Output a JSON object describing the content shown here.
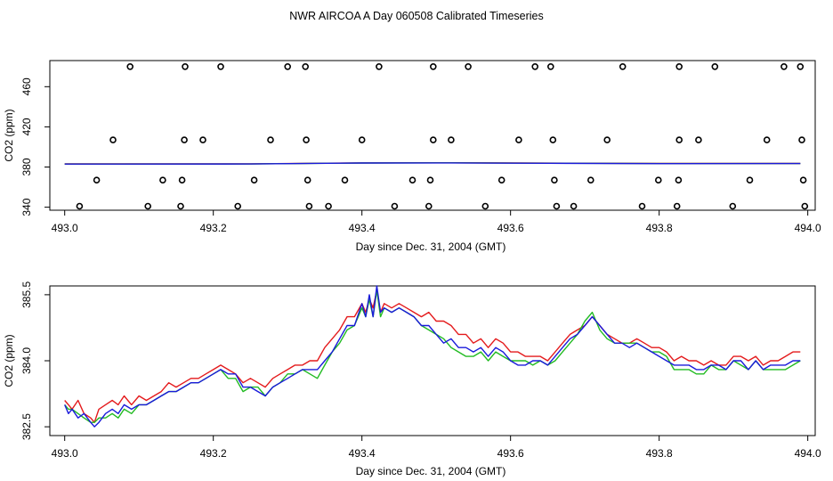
{
  "title": "NWR AIRCOA A  Day 060508  Calibrated Timeseries",
  "colors": {
    "red": "#e41a1c",
    "green": "#22bb22",
    "blue": "#1a1adb",
    "black": "#000000"
  },
  "chart_data": [
    {
      "type": "scatter",
      "xlabel": "Day since Dec. 31, 2004 (GMT)",
      "ylabel": "CO2 (ppm)",
      "xlim": [
        492.98,
        494.01
      ],
      "ylim": [
        337,
        486
      ],
      "xticks": [
        493.0,
        493.2,
        493.4,
        493.6,
        493.8,
        494.0
      ],
      "xtick_labels": [
        "493.0",
        "493.2",
        "493.4",
        "493.6",
        "493.8",
        "494.0"
      ],
      "yticks": [
        340,
        380,
        420,
        460
      ],
      "ytick_labels": [
        "340",
        "380",
        "420",
        "460"
      ],
      "points": {
        "y_480": [
          493.088,
          493.162,
          493.21,
          493.3,
          493.324,
          493.423,
          493.496,
          493.543,
          493.633,
          493.654,
          493.751,
          493.827,
          493.875,
          493.968,
          493.99
        ],
        "y_407": [
          493.065,
          493.161,
          493.186,
          493.277,
          493.325,
          493.4,
          493.496,
          493.52,
          493.611,
          493.657,
          493.73,
          493.827,
          493.853,
          493.945,
          493.992
        ],
        "y_367": [
          493.043,
          493.132,
          493.158,
          493.255,
          493.327,
          493.377,
          493.468,
          493.492,
          493.588,
          493.659,
          493.708,
          493.799,
          493.826,
          493.922,
          493.994
        ],
        "y_341": [
          493.02,
          493.112,
          493.156,
          493.233,
          493.329,
          493.355,
          493.444,
          493.49,
          493.566,
          493.662,
          493.685,
          493.777,
          493.824,
          493.899,
          493.996
        ]
      },
      "series": [
        {
          "name": "red",
          "color": "#e41a1c",
          "x": [
            493.0,
            493.25,
            493.4,
            493.5,
            493.65,
            493.8,
            493.99
          ],
          "values": [
            383.1,
            383.2,
            384.1,
            384.3,
            383.9,
            383.6,
            383.6
          ]
        },
        {
          "name": "green",
          "color": "#22bb22",
          "x": [
            493.0,
            493.25,
            493.4,
            493.5,
            493.65,
            493.8,
            493.99
          ],
          "values": [
            383.0,
            383.0,
            384.0,
            384.2,
            383.8,
            383.5,
            383.5
          ]
        },
        {
          "name": "blue",
          "color": "#1a1adb",
          "x": [
            493.0,
            493.25,
            493.4,
            493.5,
            493.65,
            493.8,
            493.99
          ],
          "values": [
            382.9,
            383.0,
            384.0,
            384.1,
            383.7,
            383.4,
            383.5
          ]
        }
      ]
    },
    {
      "type": "line",
      "xlabel": "Day since Dec. 31, 2004 (GMT)",
      "ylabel": "CO2 (ppm)",
      "xlim": [
        492.98,
        494.01
      ],
      "ylim": [
        382.3,
        385.7
      ],
      "xticks": [
        493.0,
        493.2,
        493.4,
        493.6,
        493.8,
        494.0
      ],
      "xtick_labels": [
        "493.0",
        "493.2",
        "493.4",
        "493.6",
        "493.8",
        "494.0"
      ],
      "yticks": [
        382.5,
        384.0,
        385.5
      ],
      "ytick_labels": [
        "382.5",
        "384.0",
        "385.5"
      ],
      "series": [
        {
          "name": "red",
          "color": "#e41a1c",
          "x": [
            493.0,
            493.005,
            493.01,
            493.018,
            493.026,
            493.035,
            493.04,
            493.046,
            493.055,
            493.064,
            493.072,
            493.08,
            493.09,
            493.1,
            493.11,
            493.12,
            493.13,
            493.14,
            493.15,
            493.16,
            493.17,
            493.18,
            493.19,
            493.2,
            493.21,
            493.22,
            493.23,
            493.24,
            493.25,
            493.26,
            493.27,
            493.28,
            493.29,
            493.3,
            493.31,
            493.32,
            493.33,
            493.34,
            493.35,
            493.36,
            493.37,
            493.38,
            493.39,
            493.4,
            493.405,
            493.41,
            493.415,
            493.42,
            493.425,
            493.43,
            493.44,
            493.45,
            493.46,
            493.47,
            493.48,
            493.49,
            493.5,
            493.51,
            493.52,
            493.53,
            493.54,
            493.55,
            493.56,
            493.57,
            493.58,
            493.59,
            493.6,
            493.61,
            493.62,
            493.63,
            493.64,
            493.65,
            493.66,
            493.67,
            493.68,
            493.69,
            493.7,
            493.71,
            493.72,
            493.73,
            493.74,
            493.75,
            493.76,
            493.77,
            493.78,
            493.79,
            493.8,
            493.81,
            493.82,
            493.83,
            493.84,
            493.85,
            493.86,
            493.87,
            493.88,
            493.89,
            493.9,
            493.91,
            493.92,
            493.93,
            493.94,
            493.95,
            493.96,
            493.97,
            493.98,
            493.99
          ],
          "values": [
            383.1,
            383.0,
            382.9,
            383.1,
            382.8,
            382.7,
            382.6,
            382.9,
            383.0,
            383.1,
            383.0,
            383.2,
            383.0,
            383.2,
            383.1,
            383.2,
            383.3,
            383.5,
            383.4,
            383.5,
            383.6,
            383.6,
            383.7,
            383.8,
            383.9,
            383.8,
            383.7,
            383.5,
            383.6,
            383.5,
            383.4,
            383.6,
            383.7,
            383.8,
            383.9,
            383.9,
            384.0,
            384.0,
            384.3,
            384.5,
            384.7,
            385.0,
            385.0,
            385.3,
            385.1,
            385.4,
            385.2,
            385.6,
            385.1,
            385.3,
            385.2,
            385.3,
            385.2,
            385.1,
            385.0,
            385.1,
            384.9,
            384.9,
            384.8,
            384.6,
            384.6,
            384.4,
            384.5,
            384.3,
            384.5,
            384.4,
            384.2,
            384.2,
            384.1,
            384.1,
            384.1,
            384.0,
            384.2,
            384.4,
            384.6,
            384.7,
            384.8,
            385.0,
            384.8,
            384.6,
            384.5,
            384.4,
            384.4,
            384.5,
            384.4,
            384.3,
            384.3,
            384.2,
            384.0,
            384.1,
            384.0,
            384.0,
            383.9,
            384.0,
            383.9,
            383.9,
            384.1,
            384.1,
            384.0,
            384.1,
            383.9,
            384.0,
            384.0,
            384.1,
            384.2,
            384.2
          ]
        },
        {
          "name": "green",
          "color": "#22bb22",
          "x": [
            493.0,
            493.005,
            493.01,
            493.018,
            493.026,
            493.035,
            493.04,
            493.046,
            493.055,
            493.064,
            493.072,
            493.08,
            493.09,
            493.1,
            493.11,
            493.12,
            493.13,
            493.14,
            493.15,
            493.16,
            493.17,
            493.18,
            493.19,
            493.2,
            493.21,
            493.22,
            493.23,
            493.24,
            493.25,
            493.26,
            493.27,
            493.28,
            493.29,
            493.3,
            493.31,
            493.32,
            493.33,
            493.34,
            493.35,
            493.36,
            493.37,
            493.38,
            493.39,
            493.4,
            493.405,
            493.41,
            493.415,
            493.42,
            493.425,
            493.43,
            493.44,
            493.45,
            493.46,
            493.47,
            493.48,
            493.49,
            493.5,
            493.51,
            493.52,
            493.53,
            493.54,
            493.55,
            493.56,
            493.57,
            493.58,
            493.59,
            493.6,
            493.61,
            493.62,
            493.63,
            493.64,
            493.65,
            493.66,
            493.67,
            493.68,
            493.69,
            493.7,
            493.71,
            493.72,
            493.73,
            493.74,
            493.75,
            493.76,
            493.77,
            493.78,
            493.79,
            493.8,
            493.81,
            493.82,
            493.83,
            493.84,
            493.85,
            493.86,
            493.87,
            493.88,
            493.89,
            493.9,
            493.91,
            493.92,
            493.93,
            493.94,
            493.95,
            493.96,
            493.97,
            493.98,
            493.99
          ],
          "values": [
            383.0,
            382.9,
            382.9,
            382.8,
            382.7,
            382.6,
            382.6,
            382.7,
            382.7,
            382.8,
            382.7,
            382.9,
            382.8,
            383.0,
            383.0,
            383.1,
            383.2,
            383.3,
            383.3,
            383.4,
            383.5,
            383.5,
            383.6,
            383.7,
            383.8,
            383.6,
            383.6,
            383.3,
            383.4,
            383.4,
            383.2,
            383.4,
            383.5,
            383.7,
            383.7,
            383.8,
            383.7,
            383.6,
            383.9,
            384.2,
            384.4,
            384.7,
            384.8,
            385.2,
            385.0,
            385.4,
            385.0,
            385.6,
            385.0,
            385.2,
            385.1,
            385.2,
            385.1,
            385.0,
            384.8,
            384.7,
            384.6,
            384.5,
            384.3,
            384.2,
            384.1,
            384.1,
            384.2,
            384.0,
            384.2,
            384.1,
            384.0,
            384.0,
            384.0,
            383.9,
            384.0,
            383.9,
            384.0,
            384.2,
            384.4,
            384.6,
            384.9,
            385.1,
            384.7,
            384.5,
            384.4,
            384.4,
            384.4,
            384.4,
            384.3,
            384.2,
            384.2,
            384.1,
            383.8,
            383.8,
            383.8,
            383.7,
            383.7,
            383.9,
            383.8,
            383.8,
            384.0,
            383.9,
            383.8,
            384.0,
            383.8,
            383.8,
            383.8,
            383.8,
            383.9,
            384.0
          ]
        },
        {
          "name": "blue",
          "color": "#1a1adb",
          "x": [
            493.0,
            493.005,
            493.01,
            493.018,
            493.026,
            493.035,
            493.04,
            493.046,
            493.055,
            493.064,
            493.072,
            493.08,
            493.09,
            493.1,
            493.11,
            493.12,
            493.13,
            493.14,
            493.15,
            493.16,
            493.17,
            493.18,
            493.19,
            493.2,
            493.21,
            493.22,
            493.23,
            493.24,
            493.25,
            493.26,
            493.27,
            493.28,
            493.29,
            493.3,
            493.31,
            493.32,
            493.33,
            493.34,
            493.35,
            493.36,
            493.37,
            493.38,
            493.39,
            493.4,
            493.405,
            493.41,
            493.415,
            493.42,
            493.425,
            493.43,
            493.44,
            493.45,
            493.46,
            493.47,
            493.48,
            493.49,
            493.5,
            493.51,
            493.52,
            493.53,
            493.54,
            493.55,
            493.56,
            493.57,
            493.58,
            493.59,
            493.6,
            493.61,
            493.62,
            493.63,
            493.64,
            493.65,
            493.66,
            493.67,
            493.68,
            493.69,
            493.7,
            493.71,
            493.72,
            493.73,
            493.74,
            493.75,
            493.76,
            493.77,
            493.78,
            493.79,
            493.8,
            493.81,
            493.82,
            493.83,
            493.84,
            493.85,
            493.86,
            493.87,
            493.88,
            493.89,
            493.9,
            493.91,
            493.92,
            493.93,
            493.94,
            493.95,
            493.96,
            493.97,
            493.98,
            493.99
          ],
          "values": [
            383.0,
            382.8,
            382.9,
            382.7,
            382.8,
            382.6,
            382.5,
            382.6,
            382.8,
            382.9,
            382.8,
            383.0,
            382.9,
            383.0,
            383.0,
            383.1,
            383.2,
            383.3,
            383.3,
            383.4,
            383.5,
            383.5,
            383.6,
            383.7,
            383.8,
            383.7,
            383.7,
            383.4,
            383.4,
            383.3,
            383.2,
            383.4,
            383.5,
            383.6,
            383.7,
            383.8,
            383.8,
            383.8,
            384.0,
            384.2,
            384.5,
            384.8,
            384.8,
            385.3,
            385.0,
            385.5,
            385.0,
            385.7,
            385.1,
            385.2,
            385.1,
            385.2,
            385.1,
            385.0,
            384.8,
            384.8,
            384.6,
            384.4,
            384.5,
            384.3,
            384.3,
            384.2,
            384.3,
            384.1,
            384.3,
            384.2,
            384.0,
            383.9,
            383.9,
            384.0,
            384.0,
            383.9,
            384.1,
            384.3,
            384.5,
            384.6,
            384.8,
            385.0,
            384.8,
            384.6,
            384.4,
            384.4,
            384.3,
            384.4,
            384.3,
            384.2,
            384.1,
            384.0,
            383.9,
            383.9,
            383.9,
            383.8,
            383.8,
            383.9,
            383.9,
            383.8,
            384.0,
            384.0,
            383.8,
            384.0,
            383.8,
            383.9,
            383.9,
            383.9,
            384.0,
            384.0
          ]
        }
      ]
    }
  ]
}
